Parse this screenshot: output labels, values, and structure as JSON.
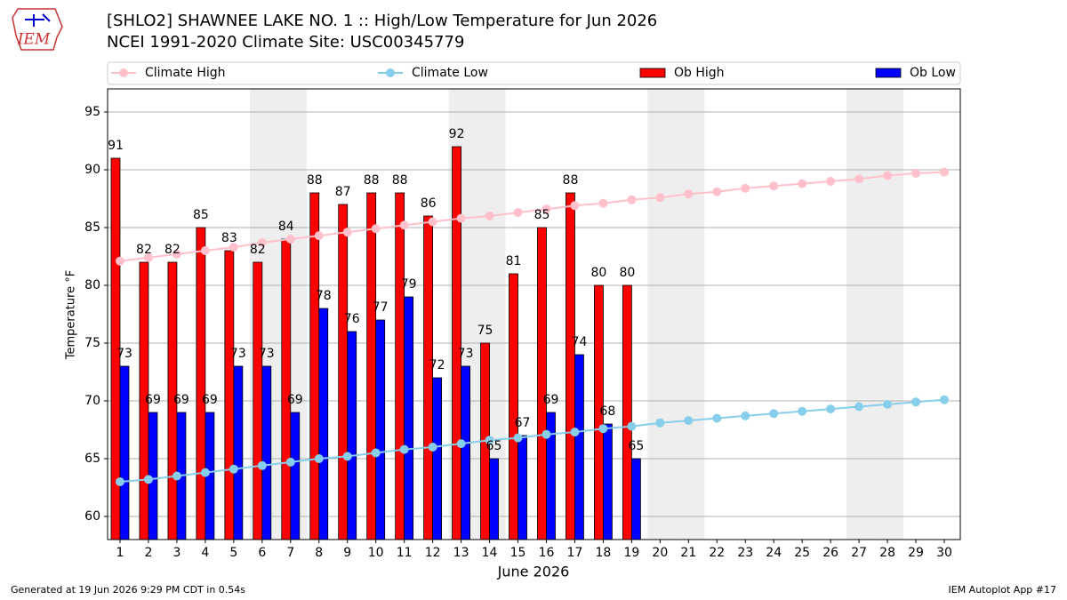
{
  "logo": "IEM",
  "chart_data": {
    "type": "bar",
    "title": "[SHLO2] SHAWNEE LAKE NO. 1 :: High/Low Temperature for Jun 2026",
    "subtitle": "NCEI 1991-2020 Climate Site: USC00345779",
    "x_label": "June 2026",
    "y_label": "Temperature °F",
    "categories": [
      "1",
      "2",
      "3",
      "4",
      "5",
      "6",
      "7",
      "8",
      "9",
      "10",
      "11",
      "12",
      "13",
      "14",
      "15",
      "16",
      "17",
      "18",
      "19",
      "20",
      "21",
      "22",
      "23",
      "24",
      "25",
      "26",
      "27",
      "28",
      "29",
      "30"
    ],
    "shaded_categories": [
      "6",
      "7",
      "13",
      "14",
      "20",
      "21",
      "27",
      "28"
    ],
    "series": [
      {
        "name": "Climate High",
        "type": "line",
        "color": "#ffc0cb",
        "values": [
          82.1,
          82.4,
          82.7,
          83.0,
          83.3,
          83.7,
          84.0,
          84.3,
          84.6,
          84.9,
          85.2,
          85.5,
          85.8,
          86.0,
          86.3,
          86.6,
          86.9,
          87.1,
          87.4,
          87.6,
          87.9,
          88.1,
          88.4,
          88.6,
          88.8,
          89.0,
          89.2,
          89.5,
          89.7,
          89.8
        ]
      },
      {
        "name": "Climate Low",
        "type": "line",
        "color": "#87ceeb",
        "values": [
          63.0,
          63.2,
          63.5,
          63.8,
          64.1,
          64.4,
          64.7,
          65.0,
          65.2,
          65.5,
          65.8,
          66.0,
          66.3,
          66.6,
          66.8,
          67.1,
          67.3,
          67.6,
          67.8,
          68.1,
          68.3,
          68.5,
          68.7,
          68.9,
          69.1,
          69.3,
          69.5,
          69.7,
          69.9,
          70.1
        ]
      },
      {
        "name": "Ob High",
        "type": "bar",
        "color": "#ff0000",
        "values": [
          91,
          82,
          82,
          85,
          83,
          82,
          84,
          88,
          87,
          88,
          88,
          86,
          92,
          75,
          81,
          85,
          88,
          80,
          80,
          null,
          null,
          null,
          null,
          null,
          null,
          null,
          null,
          null,
          null,
          null
        ]
      },
      {
        "name": "Ob Low",
        "type": "bar",
        "color": "#0000ff",
        "values": [
          73,
          69,
          69,
          69,
          73,
          73,
          69,
          78,
          76,
          77,
          79,
          72,
          73,
          65,
          67,
          69,
          74,
          68,
          65,
          null,
          null,
          null,
          null,
          null,
          null,
          null,
          null,
          null,
          null,
          null
        ]
      }
    ],
    "ylim": [
      58,
      97
    ],
    "yticks": [
      60,
      65,
      70,
      75,
      80,
      85,
      90,
      95
    ],
    "grid": true,
    "legend": "top",
    "footer_left": "Generated at 19 Jun 2026 9:29 PM CDT in 0.54s",
    "footer_right": "IEM Autoplot App #17"
  }
}
